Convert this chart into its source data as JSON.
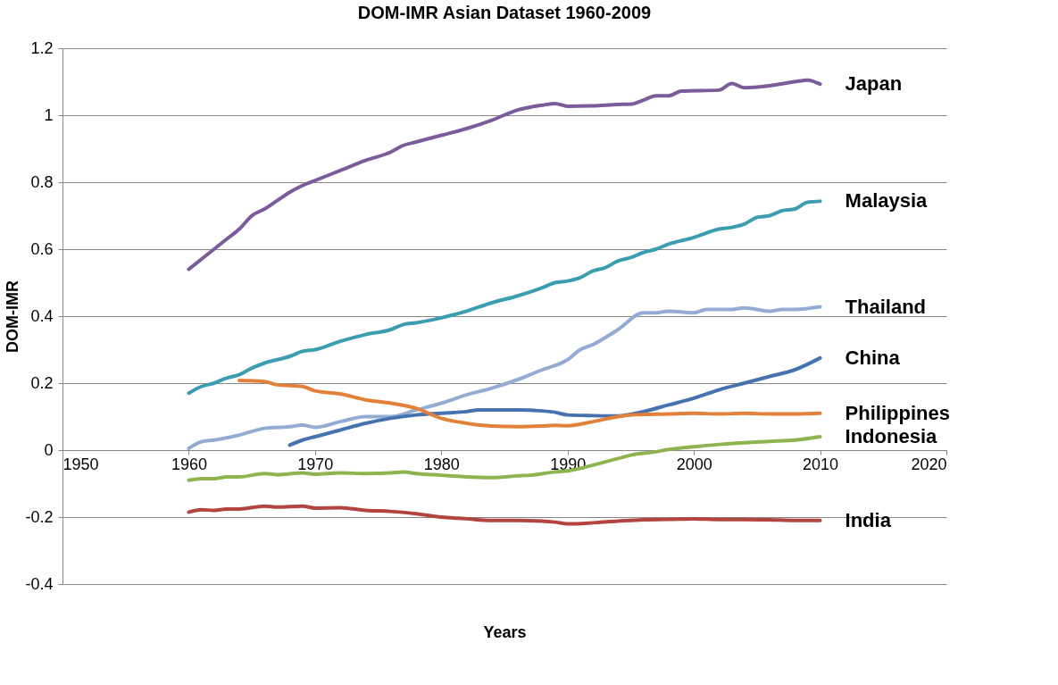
{
  "chart_data": {
    "type": "line",
    "title": "DOM-IMR Asian Dataset 1960-2009",
    "xlabel": "Years",
    "ylabel": "DOM-IMR",
    "xlim": [
      1950,
      2020
    ],
    "xticks": [
      1950,
      1960,
      1970,
      1980,
      1990,
      2000,
      2010,
      2020
    ],
    "ylim": [
      -0.4,
      1.2
    ],
    "yticks": [
      -0.4,
      -0.2,
      0,
      0.2,
      0.4,
      0.6,
      0.8,
      1,
      1.2
    ],
    "grid": "y",
    "legend": false,
    "marker": "none",
    "line_style": "solid",
    "series": [
      {
        "name": "Japan",
        "color": "#7b5c9a",
        "x": [
          1960,
          1961,
          1962,
          1963,
          1964,
          1965,
          1966,
          1967,
          1968,
          1969,
          1970,
          1972,
          1974,
          1976,
          1977,
          1978,
          1980,
          1982,
          1984,
          1986,
          1988,
          1989,
          1990,
          1992,
          1994,
          1995,
          1996,
          1997,
          1998,
          1999,
          2002,
          2003,
          2004,
          2006,
          2008,
          2009,
          2010
        ],
        "values": [
          0.54,
          0.57,
          0.6,
          0.63,
          0.66,
          0.7,
          0.72,
          0.745,
          0.77,
          0.79,
          0.805,
          0.835,
          0.865,
          0.89,
          0.91,
          0.92,
          0.94,
          0.96,
          0.985,
          1.015,
          1.03,
          1.035,
          1.027,
          1.028,
          1.032,
          1.033,
          1.045,
          1.058,
          1.058,
          1.072,
          1.075,
          1.095,
          1.082,
          1.088,
          1.1,
          1.105,
          1.093
        ]
      },
      {
        "name": "Malaysia",
        "color": "#3a9db0",
        "x": [
          1960,
          1961,
          1962,
          1963,
          1964,
          1965,
          1966,
          1968,
          1969,
          1970,
          1972,
          1974,
          1976,
          1977,
          1978,
          1980,
          1982,
          1984,
          1986,
          1988,
          1989,
          1990,
          1991,
          1992,
          1993,
          1994,
          1995,
          1996,
          1997,
          1998,
          2000,
          2002,
          2003,
          2004,
          2005,
          2006,
          2007,
          2008,
          2009,
          2010
        ],
        "values": [
          0.17,
          0.19,
          0.2,
          0.215,
          0.225,
          0.245,
          0.26,
          0.28,
          0.295,
          0.3,
          0.325,
          0.345,
          0.36,
          0.375,
          0.38,
          0.395,
          0.415,
          0.44,
          0.46,
          0.485,
          0.5,
          0.505,
          0.515,
          0.535,
          0.545,
          0.565,
          0.575,
          0.59,
          0.6,
          0.615,
          0.635,
          0.66,
          0.665,
          0.675,
          0.695,
          0.7,
          0.715,
          0.72,
          0.74,
          0.743
        ]
      },
      {
        "name": "Thailand",
        "color": "#94acd4",
        "x": [
          1960,
          1961,
          1962,
          1964,
          1966,
          1968,
          1969,
          1970,
          1972,
          1974,
          1976,
          1978,
          1980,
          1982,
          1984,
          1986,
          1988,
          1990,
          1991,
          1992,
          1994,
          1996,
          1997,
          1998,
          2000,
          2001,
          2003,
          2004,
          2006,
          2007,
          2008,
          2010
        ],
        "values": [
          0.005,
          0.025,
          0.03,
          0.045,
          0.065,
          0.07,
          0.075,
          0.068,
          0.085,
          0.1,
          0.1,
          0.12,
          0.14,
          0.165,
          0.185,
          0.21,
          0.24,
          0.27,
          0.3,
          0.315,
          0.36,
          0.41,
          0.41,
          0.415,
          0.41,
          0.42,
          0.42,
          0.425,
          0.415,
          0.42,
          0.42,
          0.428
        ]
      },
      {
        "name": "China",
        "color": "#4672b0",
        "x": [
          1968,
          1969,
          1970,
          1972,
          1974,
          1976,
          1978,
          1980,
          1982,
          1983,
          1986,
          1988,
          1989,
          1990,
          1992,
          1994,
          1996,
          1998,
          2000,
          2002,
          2004,
          2006,
          2008,
          2010
        ],
        "values": [
          0.015,
          0.03,
          0.04,
          0.06,
          0.08,
          0.095,
          0.105,
          0.11,
          0.115,
          0.12,
          0.12,
          0.117,
          0.113,
          0.105,
          0.103,
          0.102,
          0.115,
          0.135,
          0.155,
          0.18,
          0.2,
          0.22,
          0.24,
          0.275
        ]
      },
      {
        "name": "Philippines",
        "color": "#e3803a",
        "x": [
          1964,
          1966,
          1967,
          1969,
          1970,
          1972,
          1974,
          1976,
          1978,
          1980,
          1982,
          1984,
          1986,
          1988,
          1989,
          1990,
          1992,
          1994,
          1995,
          1998,
          2000,
          2002,
          2004,
          2006,
          2008,
          2010
        ],
        "values": [
          0.208,
          0.205,
          0.195,
          0.19,
          0.177,
          0.168,
          0.15,
          0.14,
          0.125,
          0.095,
          0.08,
          0.072,
          0.07,
          0.072,
          0.074,
          0.073,
          0.085,
          0.1,
          0.105,
          0.108,
          0.11,
          0.108,
          0.11,
          0.108,
          0.108,
          0.11
        ]
      },
      {
        "name": "Indonesia",
        "color": "#8eb450",
        "x": [
          1960,
          1961,
          1962,
          1963,
          1964,
          1966,
          1967,
          1969,
          1970,
          1972,
          1974,
          1976,
          1977,
          1978,
          1980,
          1982,
          1984,
          1986,
          1987,
          1989,
          1990,
          1992,
          1994,
          1995,
          1997,
          1998,
          2000,
          2002,
          2004,
          2006,
          2008,
          2010
        ],
        "values": [
          -0.09,
          -0.085,
          -0.085,
          -0.08,
          -0.08,
          -0.07,
          -0.073,
          -0.068,
          -0.072,
          -0.068,
          -0.07,
          -0.068,
          -0.065,
          -0.07,
          -0.075,
          -0.08,
          -0.082,
          -0.077,
          -0.075,
          -0.065,
          -0.062,
          -0.045,
          -0.025,
          -0.015,
          -0.005,
          0.002,
          0.01,
          0.017,
          0.022,
          0.026,
          0.03,
          0.04
        ]
      },
      {
        "name": "India",
        "color": "#b44440",
        "x": [
          1960,
          1961,
          1962,
          1963,
          1964,
          1966,
          1967,
          1969,
          1970,
          1972,
          1974,
          1976,
          1978,
          1980,
          1982,
          1984,
          1986,
          1988,
          1989,
          1990,
          1992,
          1994,
          1996,
          1998,
          2000,
          2002,
          2004,
          2006,
          2008,
          2010
        ],
        "values": [
          -0.185,
          -0.178,
          -0.18,
          -0.176,
          -0.176,
          -0.167,
          -0.17,
          -0.167,
          -0.173,
          -0.172,
          -0.18,
          -0.183,
          -0.19,
          -0.2,
          -0.205,
          -0.21,
          -0.21,
          -0.212,
          -0.215,
          -0.22,
          -0.217,
          -0.212,
          -0.208,
          -0.207,
          -0.205,
          -0.207,
          -0.207,
          -0.208,
          -0.21,
          -0.21
        ]
      }
    ]
  }
}
